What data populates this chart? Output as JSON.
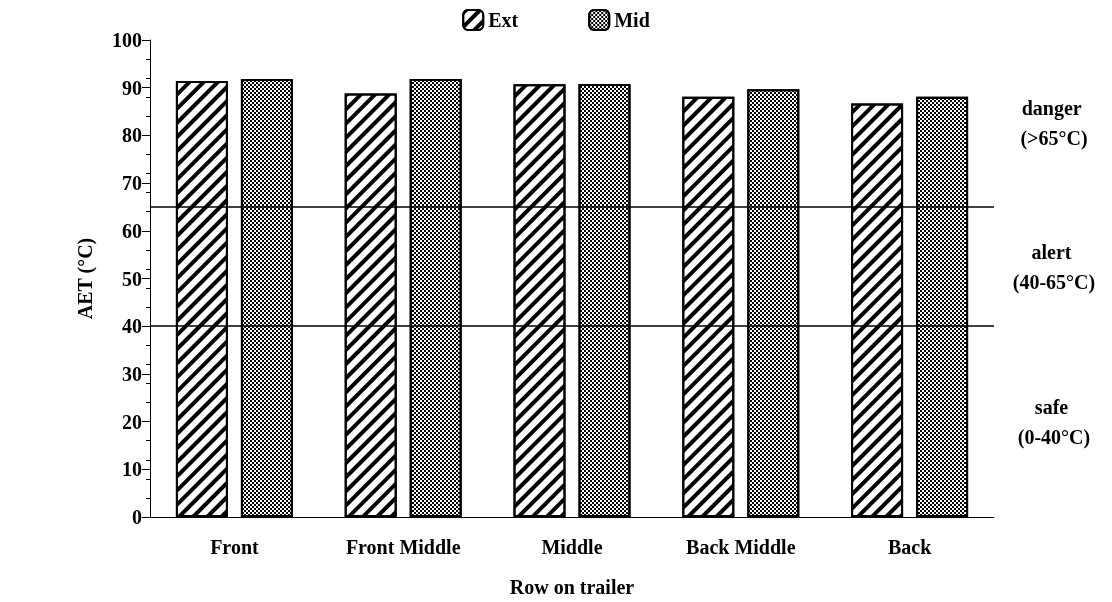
{
  "chart_data": {
    "type": "bar",
    "xlabel": "Row on trailer",
    "ylabel": "AET (°C)",
    "categories": [
      "Front",
      "Front Middle",
      "Middle",
      "Back Middle",
      "Back"
    ],
    "series": [
      {
        "name": "Ext",
        "color": "#000000",
        "values": [
          91.4,
          88.8,
          90.7,
          88.1,
          86.7
        ]
      },
      {
        "name": "Mid",
        "color": "#000000",
        "values": [
          91.8,
          91.8,
          90.8,
          89.7,
          88.1
        ]
      }
    ],
    "ylim": [
      0,
      100
    ],
    "yticks": [
      0,
      10,
      20,
      30,
      40,
      50,
      60,
      70,
      80,
      90,
      100
    ],
    "grid": false,
    "legend": "top",
    "ref_lines": [
      {
        "axis": "y",
        "value": 40,
        "color": "#000000"
      },
      {
        "axis": "y",
        "value": 65,
        "color": "#000000"
      }
    ],
    "annotations": [
      "danger (>65°C)",
      "alert (40-65°C)",
      "safe (0-40°C)"
    ]
  }
}
